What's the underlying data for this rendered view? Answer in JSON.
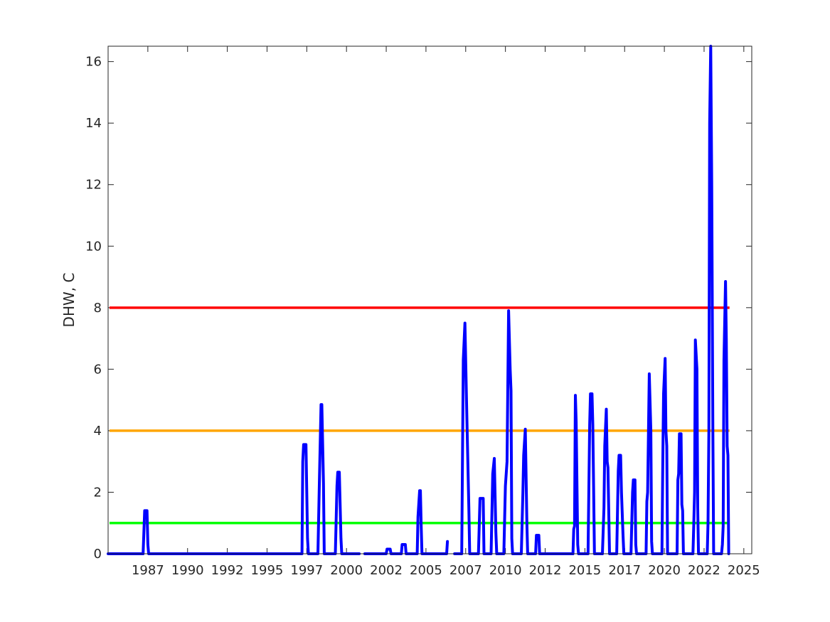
{
  "chart_data": {
    "type": "line",
    "title": "",
    "xlabel": "",
    "ylabel": "DHW, C",
    "xlim": [
      1985.0,
      2025.5
    ],
    "ylim": [
      0,
      16.5
    ],
    "grid": false,
    "legend": "none",
    "x_ticks": [
      {
        "value": 1987.5,
        "label": "1987"
      },
      {
        "value": 1990.0,
        "label": "1990"
      },
      {
        "value": 1992.5,
        "label": "1992"
      },
      {
        "value": 1995.0,
        "label": "1995"
      },
      {
        "value": 1997.5,
        "label": "1997"
      },
      {
        "value": 2000.0,
        "label": "2000"
      },
      {
        "value": 2002.5,
        "label": "2002"
      },
      {
        "value": 2005.0,
        "label": "2005"
      },
      {
        "value": 2007.5,
        "label": "2007"
      },
      {
        "value": 2010.0,
        "label": "2010"
      },
      {
        "value": 2012.5,
        "label": "2012"
      },
      {
        "value": 2015.0,
        "label": "2015"
      },
      {
        "value": 2017.5,
        "label": "2017"
      },
      {
        "value": 2020.0,
        "label": "2020"
      },
      {
        "value": 2022.5,
        "label": "2022"
      },
      {
        "value": 2025.0,
        "label": "2025"
      }
    ],
    "y_ticks": [
      0,
      2,
      4,
      6,
      8,
      10,
      12,
      14,
      16
    ],
    "thresholds": [
      {
        "value": 1,
        "color": "#00ff00"
      },
      {
        "value": 4,
        "color": "#ffa500"
      },
      {
        "value": 8,
        "color": "#ff0000"
      }
    ],
    "series": [
      {
        "color": "#0000ff",
        "segments": [
          [
            [
              1985.0,
              0
            ],
            [
              1987.2,
              0
            ],
            [
              1987.3,
              1.4
            ],
            [
              1987.45,
              1.4
            ],
            [
              1987.5,
              0.3
            ],
            [
              1987.55,
              0
            ],
            [
              1997.2,
              0
            ],
            [
              1997.25,
              3.0
            ],
            [
              1997.3,
              3.55
            ],
            [
              1997.45,
              3.55
            ],
            [
              1997.55,
              0.5
            ],
            [
              1997.6,
              0
            ],
            [
              1998.2,
              0
            ],
            [
              1998.3,
              2.5
            ],
            [
              1998.4,
              4.85
            ],
            [
              1998.45,
              4.85
            ],
            [
              1998.55,
              2.3
            ],
            [
              1998.6,
              0
            ],
            [
              1999.3,
              0
            ],
            [
              1999.4,
              2.2
            ],
            [
              1999.45,
              2.65
            ],
            [
              1999.55,
              2.65
            ],
            [
              1999.65,
              0.5
            ],
            [
              1999.7,
              0
            ],
            [
              2000.8,
              0
            ]
          ],
          [
            [
              2001.15,
              0
            ],
            [
              2002.5,
              0
            ],
            [
              2002.55,
              0.15
            ],
            [
              2002.75,
              0.15
            ],
            [
              2002.8,
              0
            ],
            [
              2003.45,
              0
            ],
            [
              2003.5,
              0.3
            ],
            [
              2003.7,
              0.3
            ],
            [
              2003.75,
              0
            ],
            [
              2004.45,
              0
            ],
            [
              2004.5,
              1.2
            ],
            [
              2004.6,
              2.05
            ],
            [
              2004.65,
              2.05
            ],
            [
              2004.7,
              0.9
            ],
            [
              2004.75,
              0
            ],
            [
              2006.3,
              0
            ],
            [
              2006.35,
              0.4
            ]
          ],
          [
            [
              2006.8,
              0
            ],
            [
              2007.25,
              0
            ],
            [
              2007.35,
              6.3
            ],
            [
              2007.45,
              7.5
            ],
            [
              2007.55,
              5.0
            ],
            [
              2007.7,
              1.5
            ],
            [
              2007.75,
              0
            ],
            [
              2008.3,
              0
            ],
            [
              2008.4,
              1.8
            ],
            [
              2008.6,
              1.8
            ],
            [
              2008.65,
              0
            ],
            [
              2009.1,
              0
            ],
            [
              2009.2,
              2.6
            ],
            [
              2009.3,
              3.1
            ],
            [
              2009.4,
              0.7
            ],
            [
              2009.45,
              0
            ],
            [
              2009.9,
              0
            ],
            [
              2010.0,
              2.2
            ],
            [
              2010.1,
              3.0
            ],
            [
              2010.2,
              7.9
            ],
            [
              2010.3,
              6.0
            ],
            [
              2010.35,
              5.3
            ],
            [
              2010.4,
              0.5
            ],
            [
              2010.45,
              0
            ],
            [
              2011.0,
              0
            ],
            [
              2011.1,
              2.0
            ],
            [
              2011.15,
              3.2
            ],
            [
              2011.25,
              4.05
            ],
            [
              2011.35,
              1.0
            ],
            [
              2011.4,
              0
            ],
            [
              2011.9,
              0
            ],
            [
              2011.95,
              0.6
            ],
            [
              2012.1,
              0.6
            ],
            [
              2012.15,
              0
            ],
            [
              2014.25,
              0
            ],
            [
              2014.3,
              0.8
            ],
            [
              2014.35,
              0.9
            ],
            [
              2014.4,
              5.15
            ],
            [
              2014.45,
              4.3
            ],
            [
              2014.55,
              0.3
            ],
            [
              2014.6,
              0
            ],
            [
              2015.2,
              0
            ],
            [
              2015.3,
              4.2
            ],
            [
              2015.35,
              5.2
            ],
            [
              2015.45,
              5.2
            ],
            [
              2015.5,
              4.2
            ],
            [
              2015.6,
              0
            ],
            [
              2016.1,
              0
            ],
            [
              2016.2,
              1.5
            ],
            [
              2016.25,
              3.5
            ],
            [
              2016.35,
              4.7
            ],
            [
              2016.4,
              3.0
            ],
            [
              2016.45,
              2.8
            ],
            [
              2016.55,
              0
            ],
            [
              2017.0,
              0
            ],
            [
              2017.1,
              2.7
            ],
            [
              2017.15,
              3.2
            ],
            [
              2017.25,
              3.2
            ],
            [
              2017.3,
              2.0
            ],
            [
              2017.4,
              0.6
            ],
            [
              2017.45,
              0
            ],
            [
              2017.9,
              0
            ],
            [
              2018.0,
              2.0
            ],
            [
              2018.05,
              2.4
            ],
            [
              2018.15,
              2.4
            ],
            [
              2018.2,
              0.3
            ],
            [
              2018.25,
              0
            ],
            [
              2018.85,
              0
            ],
            [
              2018.9,
              1.7
            ],
            [
              2018.95,
              2.0
            ],
            [
              2019.05,
              5.85
            ],
            [
              2019.15,
              4.0
            ],
            [
              2019.2,
              0.4
            ],
            [
              2019.25,
              0
            ],
            [
              2019.85,
              0
            ],
            [
              2019.9,
              3.0
            ],
            [
              2019.95,
              5.2
            ],
            [
              2020.05,
              6.35
            ],
            [
              2020.1,
              4.0
            ],
            [
              2020.15,
              3.5
            ],
            [
              2020.2,
              0
            ],
            [
              2020.8,
              0
            ],
            [
              2020.85,
              2.4
            ],
            [
              2020.9,
              2.6
            ],
            [
              2020.95,
              3.9
            ],
            [
              2021.05,
              3.9
            ],
            [
              2021.1,
              1.6
            ],
            [
              2021.15,
              1.4
            ],
            [
              2021.2,
              0
            ],
            [
              2021.8,
              0
            ],
            [
              2021.85,
              0.9
            ],
            [
              2021.9,
              2.0
            ],
            [
              2021.95,
              6.95
            ],
            [
              2022.05,
              6.0
            ],
            [
              2022.1,
              1.5
            ],
            [
              2022.15,
              0
            ],
            [
              2022.7,
              0
            ],
            [
              2022.75,
              1.0
            ],
            [
              2022.8,
              4.0
            ],
            [
              2022.85,
              14.0
            ],
            [
              2022.92,
              16.5
            ],
            [
              2022.98,
              12.0
            ],
            [
              2023.05,
              4.0
            ],
            [
              2023.1,
              0
            ],
            [
              2023.6,
              0
            ],
            [
              2023.65,
              0.3
            ],
            [
              2023.7,
              0.9
            ],
            [
              2023.75,
              6.3
            ],
            [
              2023.85,
              8.85
            ],
            [
              2023.9,
              7.0
            ],
            [
              2023.95,
              3.5
            ],
            [
              2024.0,
              3.2
            ],
            [
              2024.05,
              0
            ]
          ]
        ]
      }
    ]
  }
}
